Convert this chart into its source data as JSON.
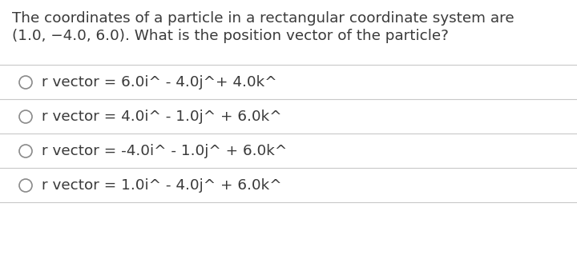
{
  "question_line1": "The coordinates of a particle in a rectangular coordinate system are",
  "question_line2": "(1.0, −4.0, 6.0). What is the position vector of the particle?",
  "options": [
    "r vector = 6.0i^ - 4.0j^+ 4.0k^",
    "r vector = 4.0i^ - 1.0j^ + 6.0k^",
    "r vector = -4.0i^ - 1.0j^ + 6.0k^",
    "r vector = 1.0i^ - 4.0j^ + 6.0k^"
  ],
  "text_color": "#3a3a3a",
  "background_color": "#ffffff",
  "line_color": "#c8c8c8",
  "circle_color": "#8a8a8a",
  "question_fontsize": 13.2,
  "option_fontsize": 13.2
}
